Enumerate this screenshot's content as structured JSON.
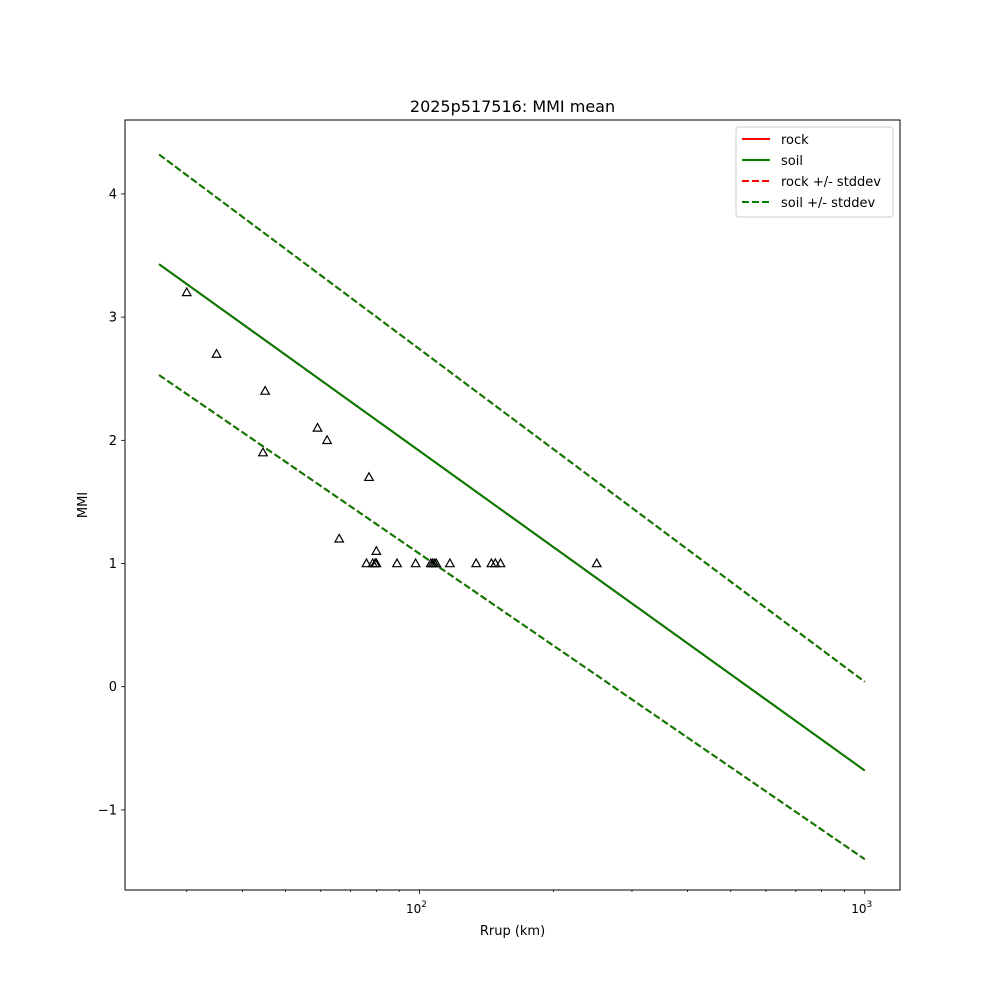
{
  "chart_data": {
    "type": "line",
    "title": "2025p517516: MMI mean",
    "xlabel": "Rrup (km)",
    "ylabel": "MMI",
    "xscale": "log",
    "xlim": [
      21.8,
      1200
    ],
    "ylim": [
      -1.65,
      4.6
    ],
    "xticks": [
      {
        "value": 100,
        "base": "10",
        "exp": "2"
      },
      {
        "value": 1000,
        "base": "10",
        "exp": "3"
      }
    ],
    "yticks": [
      {
        "value": -1,
        "label": "−1"
      },
      {
        "value": 0,
        "label": "0"
      },
      {
        "value": 1,
        "label": "1"
      },
      {
        "value": 2,
        "label": "2"
      },
      {
        "value": 3,
        "label": "3"
      },
      {
        "value": 4,
        "label": "4"
      }
    ],
    "grid": false,
    "legend_position": "top-right",
    "series": [
      {
        "name": "rock",
        "color": "#ff0000",
        "style": "solid",
        "x": [
          26,
          1000
        ],
        "y": [
          3.43,
          -0.68
        ]
      },
      {
        "name": "soil",
        "color": "#007f00",
        "style": "solid",
        "x": [
          26,
          1000
        ],
        "y": [
          3.43,
          -0.68
        ]
      },
      {
        "name": "rock +/- stddev",
        "color": "#ff0000",
        "style": "dashed",
        "segments": [
          {
            "x": [
              26,
              1000
            ],
            "y": [
              4.32,
              0.04
            ]
          },
          {
            "x": [
              26,
              1000
            ],
            "y": [
              2.53,
              -1.4
            ]
          }
        ]
      },
      {
        "name": "soil +/- stddev",
        "color": "#007f00",
        "style": "dashed",
        "segments": [
          {
            "x": [
              26,
              1000
            ],
            "y": [
              4.32,
              0.04
            ]
          },
          {
            "x": [
              26,
              1000
            ],
            "y": [
              2.53,
              -1.4
            ]
          }
        ]
      }
    ],
    "observations": {
      "marker": "triangle",
      "color": "#000000",
      "points": [
        {
          "x": 30,
          "y": 3.2
        },
        {
          "x": 35,
          "y": 2.7
        },
        {
          "x": 45,
          "y": 2.4
        },
        {
          "x": 44.5,
          "y": 1.9
        },
        {
          "x": 59,
          "y": 2.1
        },
        {
          "x": 62,
          "y": 2.0
        },
        {
          "x": 77,
          "y": 1.7
        },
        {
          "x": 66,
          "y": 1.2
        },
        {
          "x": 80,
          "y": 1.1
        },
        {
          "x": 76,
          "y": 1.0
        },
        {
          "x": 78.5,
          "y": 1.0
        },
        {
          "x": 79.5,
          "y": 1.0
        },
        {
          "x": 80,
          "y": 1.0
        },
        {
          "x": 89,
          "y": 1.0
        },
        {
          "x": 98,
          "y": 1.0
        },
        {
          "x": 106,
          "y": 1.0
        },
        {
          "x": 107,
          "y": 1.0
        },
        {
          "x": 108,
          "y": 1.0
        },
        {
          "x": 109,
          "y": 1.0
        },
        {
          "x": 117,
          "y": 1.0
        },
        {
          "x": 134,
          "y": 1.0
        },
        {
          "x": 145,
          "y": 1.0
        },
        {
          "x": 148,
          "y": 1.0
        },
        {
          "x": 152,
          "y": 1.0
        },
        {
          "x": 250,
          "y": 1.0
        }
      ]
    }
  }
}
